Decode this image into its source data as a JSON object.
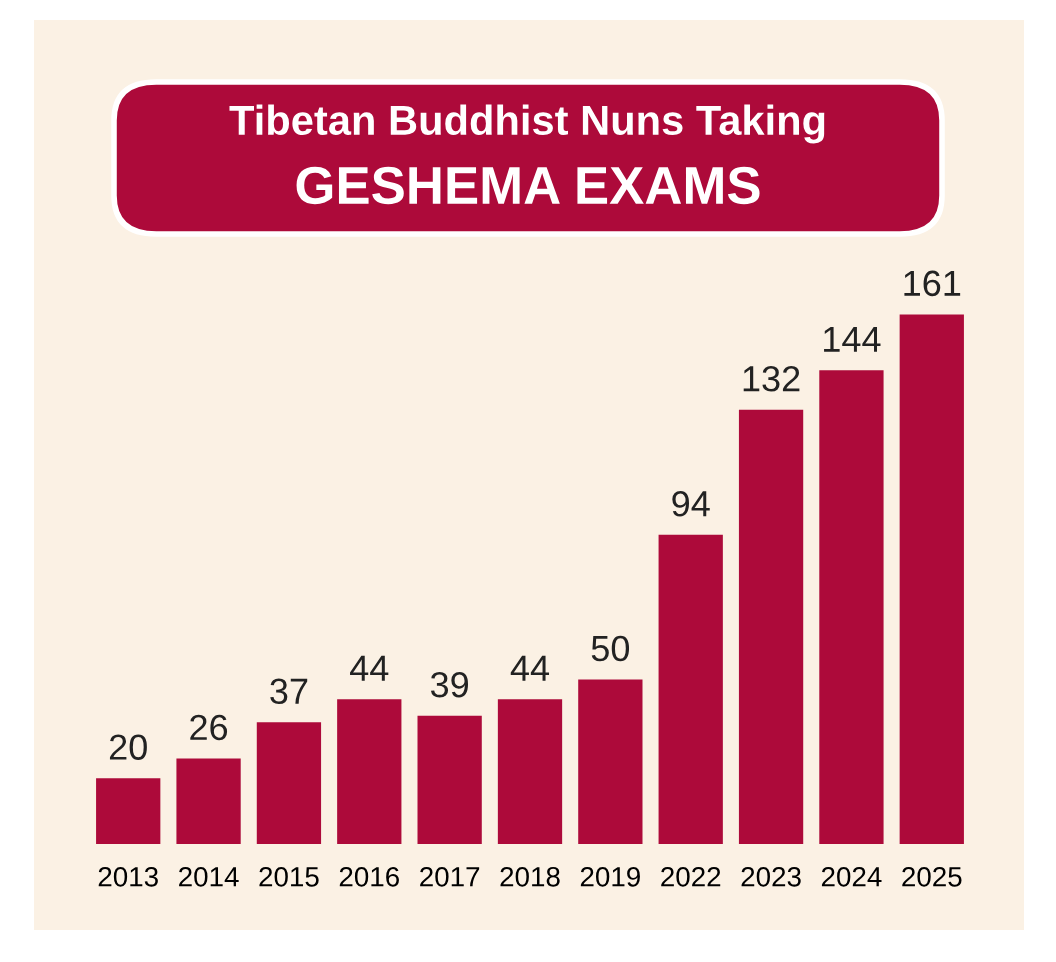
{
  "chart_data": {
    "type": "bar",
    "title": "Tibetan Buddhist Nuns Taking",
    "subtitle": "GESHEMA EXAMS",
    "categories": [
      "2013",
      "2014",
      "2015",
      "2016",
      "2017",
      "2018",
      "2019",
      "2022",
      "2023",
      "2024",
      "2025"
    ],
    "values": [
      20,
      26,
      37,
      44,
      39,
      44,
      50,
      94,
      132,
      144,
      161
    ],
    "color": "#ad0a3a",
    "data_labels": true,
    "grid": false,
    "legend": false
  }
}
